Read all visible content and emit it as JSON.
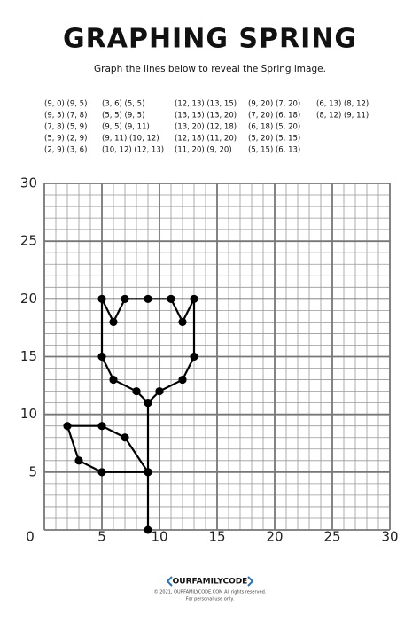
{
  "header": {
    "title": "GRAPHING SPRING",
    "subtitle": "Graph the lines below to reveal the Spring image."
  },
  "columns": [
    [
      {
        "label": "(9, 0) (9, 5)",
        "points": [
          [
            9,
            0
          ],
          [
            9,
            5
          ]
        ]
      },
      {
        "label": "(9, 5) (7, 8)",
        "points": [
          [
            9,
            5
          ],
          [
            7,
            8
          ]
        ]
      },
      {
        "label": "(7, 8) (5, 9)",
        "points": [
          [
            7,
            8
          ],
          [
            5,
            9
          ]
        ]
      },
      {
        "label": "(5, 9) (2, 9)",
        "points": [
          [
            5,
            9
          ],
          [
            2,
            9
          ]
        ]
      },
      {
        "label": "(2, 9) (3, 6)",
        "points": [
          [
            2,
            9
          ],
          [
            3,
            6
          ]
        ]
      }
    ],
    [
      {
        "label": "(3, 6) (5, 5)",
        "points": [
          [
            3,
            6
          ],
          [
            5,
            5
          ]
        ]
      },
      {
        "label": "(5, 5) (9, 5)",
        "points": [
          [
            5,
            5
          ],
          [
            9,
            5
          ]
        ]
      },
      {
        "label": "(9, 5) (9, 11)",
        "points": [
          [
            9,
            5
          ],
          [
            9,
            11
          ]
        ]
      },
      {
        "label": "(9, 11) (10, 12)",
        "points": [
          [
            9,
            11
          ],
          [
            10,
            12
          ]
        ]
      },
      {
        "label": "(10, 12) (12, 13)",
        "points": [
          [
            10,
            12
          ],
          [
            12,
            13
          ]
        ]
      }
    ],
    [
      {
        "label": "(12, 13) (13, 15)",
        "points": [
          [
            12,
            13
          ],
          [
            13,
            15
          ]
        ]
      },
      {
        "label": "(13, 15) (13, 20)",
        "points": [
          [
            13,
            15
          ],
          [
            13,
            20
          ]
        ]
      },
      {
        "label": "(13, 20) (12, 18)",
        "points": [
          [
            13,
            20
          ],
          [
            12,
            18
          ]
        ]
      },
      {
        "label": "(12, 18) (11, 20)",
        "points": [
          [
            12,
            18
          ],
          [
            11,
            20
          ]
        ]
      },
      {
        "label": "(11, 20) (9, 20)",
        "points": [
          [
            11,
            20
          ],
          [
            9,
            20
          ]
        ]
      }
    ],
    [
      {
        "label": "(9, 20) (7, 20)",
        "points": [
          [
            9,
            20
          ],
          [
            7,
            20
          ]
        ]
      },
      {
        "label": "(7, 20) (6, 18)",
        "points": [
          [
            7,
            20
          ],
          [
            6,
            18
          ]
        ]
      },
      {
        "label": "(6, 18) (5, 20)",
        "points": [
          [
            6,
            18
          ],
          [
            5,
            20
          ]
        ]
      },
      {
        "label": "(5, 20) (5, 15)",
        "points": [
          [
            5,
            20
          ],
          [
            5,
            15
          ]
        ]
      },
      {
        "label": "(5, 15) (6, 13)",
        "points": [
          [
            5,
            15
          ],
          [
            6,
            13
          ]
        ]
      }
    ],
    [
      {
        "label": "(6, 13) (8, 12)",
        "points": [
          [
            6,
            13
          ],
          [
            8,
            12
          ]
        ]
      },
      {
        "label": "(8, 12) (9, 11)",
        "points": [
          [
            8,
            12
          ],
          [
            9,
            11
          ]
        ]
      }
    ]
  ],
  "graph": {
    "xlim": [
      0,
      30
    ],
    "ylim": [
      0,
      30
    ],
    "xticks": [
      0,
      5,
      10,
      15,
      20,
      25,
      30
    ],
    "yticks": [
      0,
      5,
      10,
      15,
      20,
      25,
      30
    ]
  },
  "footer": {
    "logo": "OURFAMILYCODE",
    "copyright": "© 2021, OURFAMILYCODE.COM All rights reserved.",
    "note": "For personal use only."
  }
}
